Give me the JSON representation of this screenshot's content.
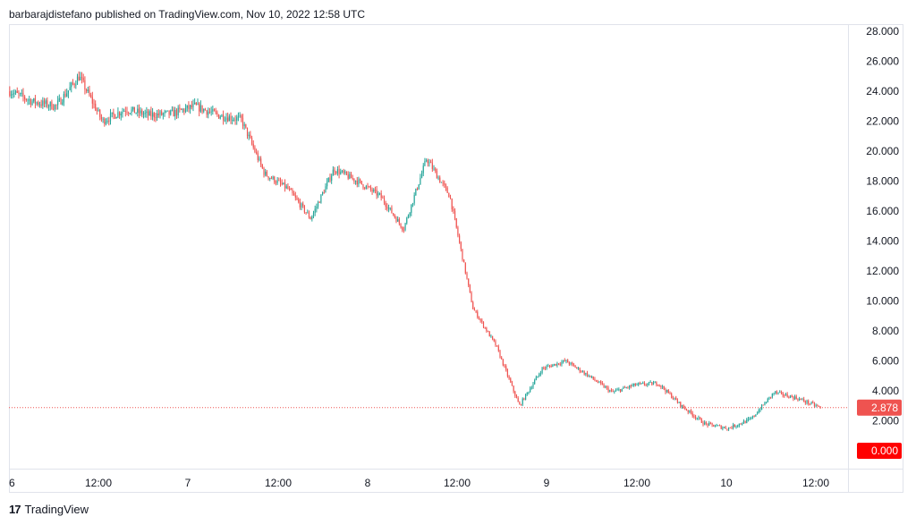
{
  "header": {
    "publisher_line": "barbarajdistefano published on TradingView.com, Nov 10, 2022 12:58 UTC"
  },
  "branding": {
    "logo_glyph": "17",
    "logo_text": "TradingView"
  },
  "colors": {
    "up": "#26a69a",
    "down": "#ef5350",
    "price_line": "#ef5350",
    "badge": "#ef5350",
    "zero_badge": "#ff0000"
  },
  "chart_data": {
    "type": "candlestick",
    "title": "",
    "xlabel": "",
    "ylabel": "",
    "x_tick_labels": [
      "6",
      "12:00",
      "7",
      "12:00",
      "8",
      "12:00",
      "9",
      "12:00",
      "10",
      "12:00"
    ],
    "y_tick_labels": [
      "28.000",
      "26.000",
      "24.000",
      "22.000",
      "20.000",
      "18.000",
      "16.000",
      "14.000",
      "12.000",
      "10.000",
      "8.000",
      "6.000",
      "4.000",
      "2.000"
    ],
    "ylim": [
      0,
      28
    ],
    "last_price": 2.878,
    "last_price_label": "2.878",
    "zero_label": "0.000",
    "grid": false,
    "approx_close_series": [
      {
        "t": "Nov 6 00:00",
        "close": 24.0
      },
      {
        "t": "Nov 6 06:00",
        "close": 23.3
      },
      {
        "t": "Nov 6 12:00",
        "close": 23.0
      },
      {
        "t": "Nov 6 16:00",
        "close": 25.0
      },
      {
        "t": "Nov 6 18:00",
        "close": 22.0
      },
      {
        "t": "Nov 6 22:00",
        "close": 22.8
      },
      {
        "t": "Nov 7 06:00",
        "close": 22.4
      },
      {
        "t": "Nov 7 12:00",
        "close": 22.5
      },
      {
        "t": "Nov 7 16:00",
        "close": 23.0
      },
      {
        "t": "Nov 7 20:00",
        "close": 22.4
      },
      {
        "t": "Nov 8 00:00",
        "close": 22.1
      },
      {
        "t": "Nov 8 02:00",
        "close": 18.5
      },
      {
        "t": "Nov 8 04:00",
        "close": 17.5
      },
      {
        "t": "Nov 8 06:00",
        "close": 15.5
      },
      {
        "t": "Nov 8 08:00",
        "close": 18.8
      },
      {
        "t": "Nov 8 12:00",
        "close": 18.0
      },
      {
        "t": "Nov 8 15:00",
        "close": 17.0
      },
      {
        "t": "Nov 8 17:00",
        "close": 14.8
      },
      {
        "t": "Nov 8 18:00",
        "close": 19.5
      },
      {
        "t": "Nov 8 19:00",
        "close": 17.0
      },
      {
        "t": "Nov 8 20:00",
        "close": 9.5
      },
      {
        "t": "Nov 8 21:00",
        "close": 7.0
      },
      {
        "t": "Nov 8 22:00",
        "close": 3.0
      },
      {
        "t": "Nov 9 00:00",
        "close": 5.5
      },
      {
        "t": "Nov 9 03:00",
        "close": 6.0
      },
      {
        "t": "Nov 9 06:00",
        "close": 5.0
      },
      {
        "t": "Nov 9 09:00",
        "close": 3.9
      },
      {
        "t": "Nov 9 12:00",
        "close": 4.4
      },
      {
        "t": "Nov 9 15:00",
        "close": 4.5
      },
      {
        "t": "Nov 9 18:00",
        "close": 3.0
      },
      {
        "t": "Nov 9 21:00",
        "close": 1.8
      },
      {
        "t": "Nov 10 00:00",
        "close": 1.5
      },
      {
        "t": "Nov 10 04:00",
        "close": 2.1
      },
      {
        "t": "Nov 10 06:00",
        "close": 3.9
      },
      {
        "t": "Nov 10 08:00",
        "close": 3.5
      },
      {
        "t": "Nov 10 12:00",
        "close": 2.878
      }
    ]
  }
}
